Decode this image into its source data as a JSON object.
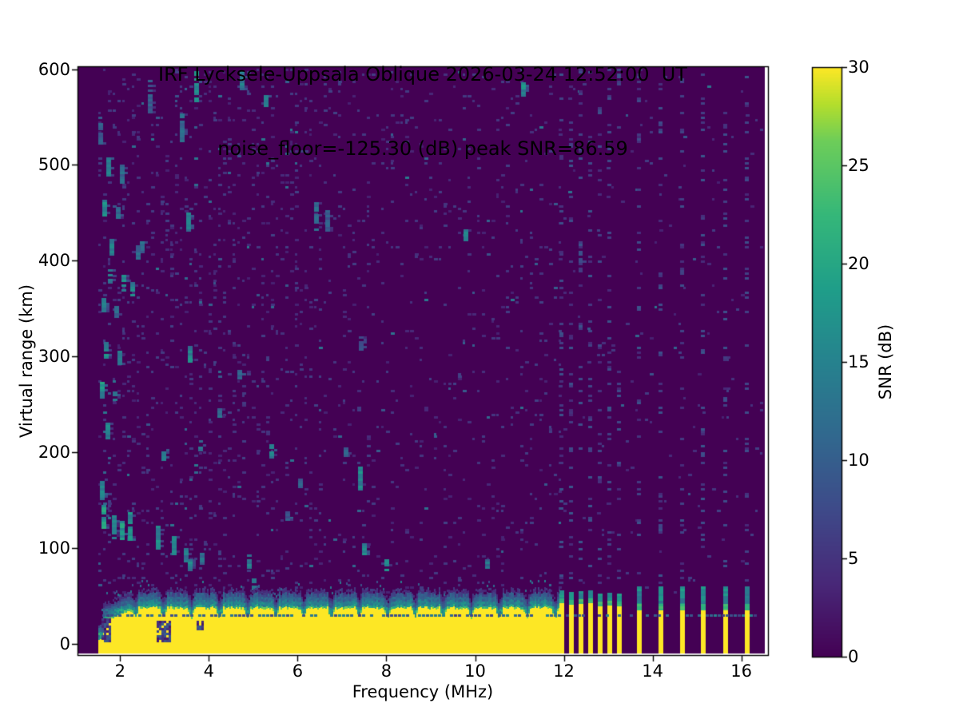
{
  "chart_data": {
    "type": "heatmap",
    "title_line1": "IRF Lycksele-Uppsala Oblique 2026-03-24 12:52:00  UT",
    "title_line2": "noise_floor=-125.30 (dB) peak SNR=86.59",
    "station": "IRF Lycksele-Uppsala Oblique",
    "timestamp": "2026-03-24 12:52:00 UT",
    "noise_floor_db": -125.3,
    "peak_snr_db": 86.59,
    "xlabel": "Frequency (MHz)",
    "ylabel": "Virtual range (km)",
    "colorbar_label": "SNR (dB)",
    "colormap": "viridis",
    "x_ticks": [
      2,
      4,
      6,
      8,
      10,
      12,
      14,
      16
    ],
    "y_ticks": [
      0,
      100,
      200,
      300,
      400,
      500,
      600
    ],
    "colorbar_ticks": [
      0,
      5,
      10,
      15,
      20,
      25,
      30
    ],
    "xlim": [
      1.04,
      16.6
    ],
    "ylim": [
      -12,
      603
    ],
    "clim": [
      0,
      30
    ],
    "grid": false,
    "legend": "colorbar-right",
    "data_start_mhz": 1.5,
    "ground_band": {
      "solid_from_mhz": 1.5,
      "solid_to_mhz": 11.92,
      "top_km": 37,
      "bottom_km": -10,
      "dark_line_km": 30,
      "transition_top_km": 59,
      "scallop_pitch_mhz": 0.63,
      "gaps": [
        {
          "mhz": [
            1.58,
            1.78
          ],
          "km": [
            2,
            26
          ]
        },
        {
          "mhz": [
            2.83,
            3.15
          ],
          "km": [
            2,
            24
          ]
        },
        {
          "mhz": [
            3.72,
            3.86
          ],
          "km": [
            14,
            24
          ]
        }
      ]
    },
    "sounding_stripes": {
      "cluster_mhz": [
        11.95,
        12.17,
        12.38,
        12.6,
        12.81,
        13.03,
        13.25
      ],
      "isolated_mhz": [
        13.7,
        14.18,
        14.67,
        15.15,
        15.64,
        16.13
      ],
      "cluster_yellow_top_km": 58,
      "isolated_yellow_top_km": 44,
      "cap_top_km": 70
    },
    "echo_clusters": [
      {
        "f": 3.73,
        "km": 598,
        "len": 32,
        "snr": 16
      },
      {
        "f": 4.75,
        "km": 598,
        "len": 20,
        "snr": 13
      },
      {
        "f": 2.67,
        "km": 589,
        "len": 33,
        "snr": 9
      },
      {
        "f": 11.09,
        "km": 586,
        "len": 13,
        "snr": 15
      },
      {
        "f": 5.29,
        "km": 573,
        "len": 12,
        "snr": 14
      },
      {
        "f": 3.4,
        "km": 554,
        "len": 29,
        "snr": 11
      },
      {
        "f": 1.57,
        "km": 544,
        "len": 25,
        "snr": 10
      },
      {
        "f": 1.75,
        "km": 508,
        "len": 18,
        "snr": 15
      },
      {
        "f": 2.05,
        "km": 500,
        "len": 18,
        "snr": 11
      },
      {
        "f": 1.66,
        "km": 464,
        "len": 17,
        "snr": 15
      },
      {
        "f": 6.43,
        "km": 461,
        "len": 29,
        "snr": 11
      },
      {
        "f": 1.96,
        "km": 456,
        "len": 15,
        "snr": 11
      },
      {
        "f": 6.68,
        "km": 453,
        "len": 21,
        "snr": 9
      },
      {
        "f": 3.55,
        "km": 450,
        "len": 18,
        "snr": 13
      },
      {
        "f": 9.79,
        "km": 433,
        "len": 12,
        "snr": 13
      },
      {
        "f": 1.82,
        "km": 423,
        "len": 17,
        "snr": 14
      },
      {
        "f": 2.49,
        "km": 420,
        "len": 12,
        "snr": 11
      },
      {
        "f": 2.4,
        "km": 416,
        "len": 15,
        "snr": 11
      },
      {
        "f": 1.77,
        "km": 391,
        "len": 15,
        "snr": 15
      },
      {
        "f": 2.09,
        "km": 385,
        "len": 18,
        "snr": 17
      },
      {
        "f": 2.29,
        "km": 378,
        "len": 15,
        "snr": 14
      },
      {
        "f": 1.64,
        "km": 361,
        "len": 13,
        "snr": 14
      },
      {
        "f": 1.93,
        "km": 353,
        "len": 12,
        "snr": 11
      },
      {
        "f": 7.43,
        "km": 321,
        "len": 13,
        "snr": 9
      },
      {
        "f": 1.69,
        "km": 315,
        "len": 17,
        "snr": 15
      },
      {
        "f": 3.58,
        "km": 311,
        "len": 17,
        "snr": 14
      },
      {
        "f": 2.0,
        "km": 306,
        "len": 13,
        "snr": 12
      },
      {
        "f": 4.7,
        "km": 286,
        "len": 10,
        "snr": 10
      },
      {
        "f": 1.6,
        "km": 273,
        "len": 17,
        "snr": 16
      },
      {
        "f": 1.89,
        "km": 263,
        "len": 12,
        "snr": 12
      },
      {
        "f": 4.25,
        "km": 246,
        "len": 10,
        "snr": 11
      },
      {
        "f": 1.73,
        "km": 231,
        "len": 17,
        "snr": 15
      },
      {
        "f": 2.99,
        "km": 203,
        "len": 12,
        "snr": 13
      },
      {
        "f": 3.82,
        "km": 208,
        "len": 10,
        "snr": 12
      },
      {
        "f": 5.42,
        "km": 208,
        "len": 13,
        "snr": 14
      },
      {
        "f": 7.09,
        "km": 205,
        "len": 10,
        "snr": 11
      },
      {
        "f": 7.42,
        "km": 185,
        "len": 25,
        "snr": 15
      },
      {
        "f": 1.6,
        "km": 172,
        "len": 21,
        "snr": 14
      },
      {
        "f": 6.07,
        "km": 172,
        "len": 10,
        "snr": 10
      },
      {
        "f": 1.64,
        "km": 145,
        "len": 25,
        "snr": 17
      },
      {
        "f": 5.78,
        "km": 138,
        "len": 8,
        "snr": 9
      },
      {
        "f": 2.23,
        "km": 137,
        "len": 28,
        "snr": 16
      },
      {
        "f": 1.86,
        "km": 134,
        "len": 23,
        "snr": 15
      },
      {
        "f": 2.04,
        "km": 128,
        "len": 22,
        "snr": 17
      },
      {
        "f": 2.86,
        "km": 123,
        "len": 25,
        "snr": 15
      },
      {
        "f": 3.22,
        "km": 112,
        "len": 18,
        "snr": 14
      },
      {
        "f": 7.51,
        "km": 105,
        "len": 15,
        "snr": 14
      },
      {
        "f": 3.49,
        "km": 100,
        "len": 13,
        "snr": 13
      },
      {
        "f": 3.85,
        "km": 95,
        "len": 12,
        "snr": 12
      },
      {
        "f": 4.92,
        "km": 93,
        "len": 15,
        "snr": 14
      },
      {
        "f": 8.01,
        "km": 88,
        "len": 12,
        "snr": 14
      },
      {
        "f": 10.28,
        "km": 88,
        "len": 10,
        "snr": 12
      },
      {
        "f": 3.58,
        "km": 88,
        "len": 12,
        "snr": 14
      },
      {
        "f": 5.02,
        "km": 68,
        "len": 12,
        "snr": 15
      }
    ],
    "colors": {
      "background": "#ffffff",
      "viridis_min": "#440154",
      "viridis_max": "#fde725",
      "axes": "#000000"
    }
  }
}
